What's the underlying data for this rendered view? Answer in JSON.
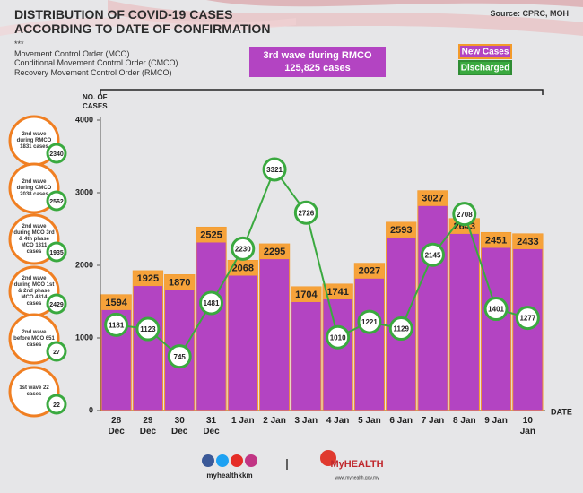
{
  "chart_data": {
    "type": "bar",
    "title": [
      "DISTRIBUTION OF COVID-19 CASES",
      "ACCORDING TO DATE OF CONFIRMATION"
    ],
    "source": "Source: CPRC, MOH",
    "notes": [
      "***",
      "Movement Control Order (MCO)",
      "Conditional Movement Control Order (CMCO)",
      "Recovery Movement Control Order (RMCO)"
    ],
    "annotation": [
      "3rd wave during RMCO",
      "125,825 cases"
    ],
    "ylabel": "NO. OF CASES",
    "xlabel": "DATE",
    "categories": [
      "28 Dec",
      "29 Dec",
      "30 Dec",
      "31 Dec",
      "1 Jan",
      "2 Jan",
      "3 Jan",
      "4 Jan",
      "5 Jan",
      "6 Jan",
      "7 Jan",
      "8 Jan",
      "9 Jan",
      "10 Jan"
    ],
    "series": [
      {
        "name": "New Cases",
        "color": "#b344c2",
        "values": [
          1594,
          1925,
          1870,
          2525,
          2068,
          2295,
          1704,
          1741,
          2027,
          2593,
          3027,
          2643,
          2451,
          2433
        ]
      },
      {
        "name": "Discharged",
        "color": "#3aa93f",
        "values": [
          1181,
          1123,
          745,
          1481,
          2230,
          3321,
          2726,
          1010,
          1221,
          1129,
          2145,
          2708,
          1401,
          1277
        ]
      }
    ],
    "ylim": [
      0,
      4000
    ],
    "yticks": [
      0,
      1000,
      2000,
      3000,
      4000
    ],
    "waves": [
      {
        "text": "2nd wave during RMCO 1831 cases",
        "discharged": "2340"
      },
      {
        "text": "2nd wave during CMCO 2038 cases",
        "discharged": "2562"
      },
      {
        "text": "2nd wave during MCO 3rd & 4th phase MCO 1311 cases",
        "discharged": "1935"
      },
      {
        "text": "2nd wave during MCO 1st & 2nd phase MCO 4314 cases",
        "discharged": "2429"
      },
      {
        "text": "2nd wave before MCO 651 cases",
        "discharged": "27"
      },
      {
        "text": "1st wave 22 cases",
        "discharged": "22"
      }
    ],
    "footer": {
      "handle": "myhealthkkm",
      "brand": "MyHEALTH",
      "site": "www.myhealth.gov.my"
    }
  }
}
